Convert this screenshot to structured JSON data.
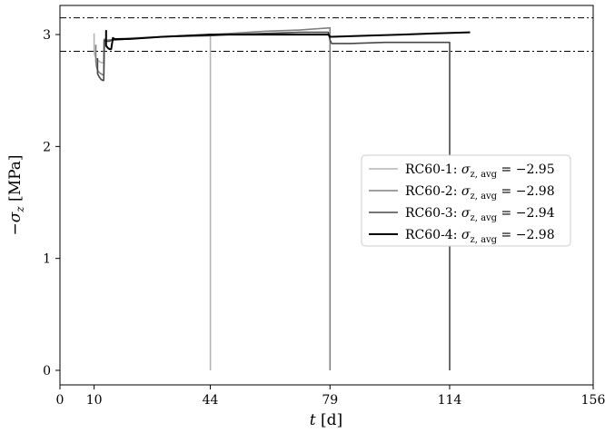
{
  "chart_data": {
    "type": "line",
    "title": "",
    "xlabel_var": "t",
    "xlabel_unit": "[d]",
    "ylabel_var": "−σ",
    "ylabel_sub": "z",
    "ylabel_unit": "[MPa]",
    "xlim": [
      0,
      156
    ],
    "ylim": [
      -0.13,
      3.26
    ],
    "x_ticks": [
      0,
      10,
      44,
      79,
      114,
      156
    ],
    "y_ticks": [
      0,
      1,
      2,
      3
    ],
    "grid": false,
    "legend_placement": "center-right",
    "reference_lines": [
      3.15,
      2.85
    ],
    "reference_line_style": "dash-dot",
    "series": [
      {
        "name": "RC60-1",
        "legend_prefix": "RC60-1: ",
        "avg_label": "= −2.95",
        "color": "#b4b4b4",
        "x": [
          10,
          10,
          10.15,
          10.5,
          11,
          11.5,
          12,
          12.5,
          12.8,
          12.8,
          13.2,
          14,
          16,
          20,
          30,
          40,
          43,
          44,
          44
        ],
        "y": [
          3.01,
          2.86,
          2.82,
          2.79,
          2.77,
          2.76,
          2.75,
          2.75,
          2.75,
          2.95,
          2.95,
          2.95,
          2.96,
          2.97,
          2.98,
          2.99,
          3.0,
          3.0,
          0
        ]
      },
      {
        "name": "RC60-2",
        "legend_prefix": "RC60-2: ",
        "avg_label": "= −2.98",
        "color": "#808080",
        "x": [
          10.5,
          10.5,
          10.7,
          11,
          11.5,
          12,
          12.5,
          12.8,
          13,
          13.5,
          14,
          15,
          20,
          30,
          44,
          50,
          60,
          70,
          79,
          79
        ],
        "y": [
          2.91,
          2.76,
          2.71,
          2.68,
          2.66,
          2.65,
          2.64,
          2.64,
          2.96,
          2.95,
          2.95,
          2.95,
          2.96,
          2.98,
          3.0,
          3.01,
          3.03,
          3.04,
          3.06,
          0
        ]
      },
      {
        "name": "RC60-3",
        "legend_prefix": "RC60-3: ",
        "avg_label": "= −2.94",
        "color": "#484848",
        "x": [
          11,
          11,
          11.5,
          12,
          12.5,
          12.8,
          13,
          13.5,
          14,
          14.5,
          15,
          20,
          30,
          44,
          50,
          60,
          70,
          78.5,
          79,
          79.5,
          85,
          95,
          105,
          114,
          114
        ],
        "y": [
          2.79,
          2.65,
          2.62,
          2.6,
          2.59,
          2.59,
          2.95,
          2.94,
          2.94,
          2.94,
          2.95,
          2.96,
          2.98,
          2.99,
          3.0,
          3.01,
          3.02,
          3.02,
          2.95,
          2.92,
          2.92,
          2.93,
          2.93,
          2.93,
          0
        ]
      },
      {
        "name": "RC60-4",
        "legend_prefix": "RC60-4: ",
        "avg_label": "= −2.98",
        "color": "#000000",
        "x": [
          13.5,
          13.5,
          14,
          14.5,
          15,
          15.5,
          16,
          20,
          30,
          44,
          60,
          70,
          78.5,
          79,
          79.5,
          90,
          100,
          110,
          120
        ],
        "y": [
          3.04,
          2.9,
          2.88,
          2.87,
          2.87,
          2.97,
          2.96,
          2.96,
          2.98,
          3.0,
          3.0,
          3.0,
          3.0,
          2.98,
          2.98,
          2.99,
          3.0,
          3.01,
          3.02
        ]
      }
    ]
  }
}
